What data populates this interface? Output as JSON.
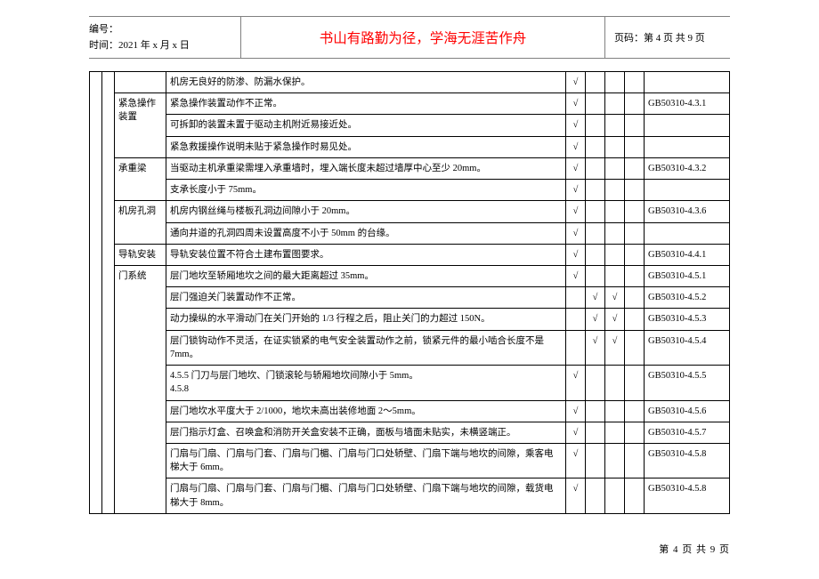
{
  "header": {
    "line1": "编号：",
    "line2": "时间：2021 年 x 月 x 日",
    "center": "书山有路勤为径，学海无涯苦作舟",
    "right": "页码：第 4 页  共 9 页"
  },
  "footer": "第 4 页 共 9 页",
  "checkmark": "√",
  "rows": [
    {
      "cat": "",
      "catRowspan": 0,
      "desc": "机房无良好的防渗、防漏水保护。",
      "c": [
        1,
        0,
        0,
        0
      ],
      "ref": ""
    },
    {
      "cat": "紧急操作装置",
      "catRowspan": 3,
      "desc": "紧急操作装置动作不正常。",
      "c": [
        1,
        0,
        0,
        0
      ],
      "ref": "GB50310-4.3.1"
    },
    {
      "cat": "",
      "catRowspan": 0,
      "desc": "可拆卸的装置未置于驱动主机附近易接近处。",
      "c": [
        1,
        0,
        0,
        0
      ],
      "ref": ""
    },
    {
      "cat": "",
      "catRowspan": 0,
      "desc": "紧急救援操作说明未贴于紧急操作时易见处。",
      "c": [
        1,
        0,
        0,
        0
      ],
      "ref": ""
    },
    {
      "cat": "承重梁",
      "catRowspan": 2,
      "desc": "当驱动主机承重梁需埋入承重墙时，埋入端长度未超过墙厚中心至少 20mm。",
      "c": [
        1,
        0,
        0,
        0
      ],
      "ref": "GB50310-4.3.2"
    },
    {
      "cat": "",
      "catRowspan": 0,
      "desc": "支承长度小于 75mm。",
      "c": [
        1,
        0,
        0,
        0
      ],
      "ref": ""
    },
    {
      "cat": "机房孔洞",
      "catRowspan": 2,
      "desc": "机房内钢丝绳与楼板孔洞边间隙小于 20mm。",
      "c": [
        1,
        0,
        0,
        0
      ],
      "ref": "GB50310-4.3.6"
    },
    {
      "cat": "",
      "catRowspan": 0,
      "desc": "通向井道的孔洞四周未设置高度不小于 50mm 的台缘。",
      "c": [
        1,
        0,
        0,
        0
      ],
      "ref": ""
    },
    {
      "cat": "导轨安装",
      "catRowspan": 1,
      "desc": "导轨安装位置不符合土建布置图要求。",
      "c": [
        1,
        0,
        0,
        0
      ],
      "ref": "GB50310-4.4.1"
    },
    {
      "cat": "门系统",
      "catRowspan": 9,
      "desc": "层门地坎至轿厢地坎之间的最大距离超过 35mm。",
      "c": [
        1,
        0,
        0,
        0
      ],
      "ref": "GB50310-4.5.1"
    },
    {
      "cat": "",
      "catRowspan": 0,
      "desc": "层门强迫关门装置动作不正常。",
      "c": [
        0,
        1,
        1,
        0
      ],
      "ref": "GB50310-4.5.2"
    },
    {
      "cat": "",
      "catRowspan": 0,
      "desc": "动力操纵的水平滑动门在关门开始的 1/3 行程之后，阻止关门的力超过 150N。",
      "c": [
        0,
        1,
        1,
        0
      ],
      "ref": "GB50310-4.5.3"
    },
    {
      "cat": "",
      "catRowspan": 0,
      "desc": "层门锁钩动作不灵活，在证实锁紧的电气安全装置动作之前，锁紧元件的最小啮合长度不是 7mm。",
      "c": [
        0,
        1,
        1,
        0
      ],
      "ref": "GB50310-4.5.4"
    },
    {
      "cat": "",
      "catRowspan": 0,
      "desc": "4.5.5  门刀与层门地坎、门锁滚轮与轿厢地坎间隙小于 5mm。\n4.5.8",
      "c": [
        1,
        0,
        0,
        0
      ],
      "ref": "GB50310-4.5.5"
    },
    {
      "cat": "",
      "catRowspan": 0,
      "desc": "层门地坎水平度大于 2/1000，地坎未高出装修地面 2～5mm。",
      "c": [
        1,
        0,
        0,
        0
      ],
      "ref": "GB50310-4.5.6"
    },
    {
      "cat": "",
      "catRowspan": 0,
      "desc": "层门指示灯盒、召唤盒和消防开关盒安装不正确，面板与墙面未贴实，未横竖端正。",
      "c": [
        1,
        0,
        0,
        0
      ],
      "ref": "GB50310-4.5.7"
    },
    {
      "cat": "",
      "catRowspan": 0,
      "desc": "门扇与门扇、门扇与门套、门扇与门楣、门扇与门口处轿壁、门扇下端与地坎的间隙，乘客电梯大于 6mm。",
      "c": [
        1,
        0,
        0,
        0
      ],
      "ref": "GB50310-4.5.8"
    },
    {
      "cat": "",
      "catRowspan": 0,
      "desc": "门扇与门扇、门扇与门套、门扇与门楣、门扇与门口处轿壁、门扇下端与地坎的间隙，载货电梯大于 8mm。",
      "c": [
        1,
        0,
        0,
        0
      ],
      "ref": "GB50310-4.5.8"
    }
  ]
}
